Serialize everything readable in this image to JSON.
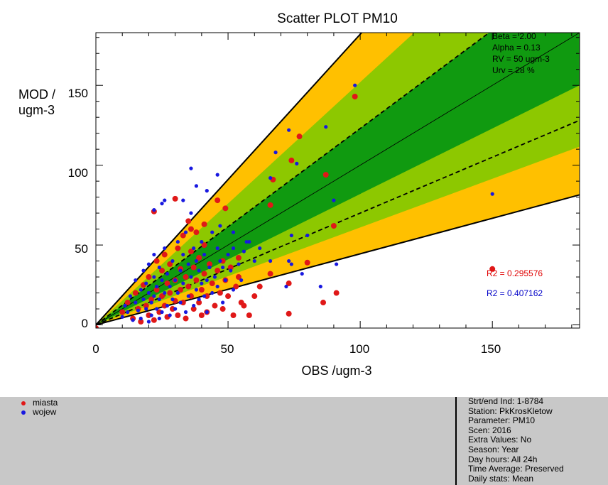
{
  "chart_data": {
    "type": "scatter",
    "title": "Scatter PLOT   PM10",
    "xlabel": "OBS /ugm-3",
    "ylabel": [
      "MOD /",
      "ugm-3"
    ],
    "xlim": [
      0,
      183
    ],
    "ylim": [
      -2,
      183
    ],
    "x_ticks": [
      "0",
      "50",
      "100",
      "150"
    ],
    "y_ticks": [
      "0",
      "50",
      "100",
      "150"
    ],
    "annotations": [
      "Beta = 2.00",
      "Alpha = 0.13",
      "RV = 50 ugm-3",
      "Urv = 28 %"
    ],
    "bands": {
      "colors": {
        "outer": "#ffc000",
        "middle": "#8dc800",
        "inner": "#109a10"
      }
    },
    "r2": [
      {
        "label": "R2 = 0.295576",
        "color": "#e00000"
      },
      {
        "label": "R2 = 0.407162",
        "color": "#0000c8"
      }
    ],
    "series": [
      {
        "name": "miasta",
        "color": "#e01818",
        "points": [
          [
            0,
            -2
          ],
          [
            10,
            8
          ],
          [
            12,
            14
          ],
          [
            14,
            4
          ],
          [
            15,
            20
          ],
          [
            16,
            10
          ],
          [
            17,
            2
          ],
          [
            18,
            25
          ],
          [
            19,
            12
          ],
          [
            20,
            6
          ],
          [
            20,
            30
          ],
          [
            21,
            16
          ],
          [
            22,
            3
          ],
          [
            23,
            22
          ],
          [
            23,
            40
          ],
          [
            24,
            8
          ],
          [
            25,
            18
          ],
          [
            25,
            34
          ],
          [
            26,
            12
          ],
          [
            26,
            44
          ],
          [
            27,
            5
          ],
          [
            27,
            26
          ],
          [
            28,
            20
          ],
          [
            28,
            38
          ],
          [
            29,
            10
          ],
          [
            30,
            28
          ],
          [
            30,
            15
          ],
          [
            31,
            48
          ],
          [
            31,
            6
          ],
          [
            32,
            22
          ],
          [
            32,
            35
          ],
          [
            33,
            14
          ],
          [
            33,
            56
          ],
          [
            34,
            30
          ],
          [
            34,
            4
          ],
          [
            35,
            65
          ],
          [
            35,
            24
          ],
          [
            36,
            18
          ],
          [
            36,
            46
          ],
          [
            37,
            10
          ],
          [
            37,
            36
          ],
          [
            38,
            58
          ],
          [
            38,
            28
          ],
          [
            39,
            14
          ],
          [
            39,
            42
          ],
          [
            40,
            22
          ],
          [
            40,
            6
          ],
          [
            41,
            50
          ],
          [
            41,
            32
          ],
          [
            42,
            18
          ],
          [
            42,
            8
          ],
          [
            43,
            38
          ],
          [
            44,
            26
          ],
          [
            45,
            12
          ],
          [
            46,
            78
          ],
          [
            46,
            34
          ],
          [
            47,
            20
          ],
          [
            48,
            10
          ],
          [
            48,
            40
          ],
          [
            49,
            73
          ],
          [
            49,
            28
          ],
          [
            50,
            18
          ],
          [
            51,
            36
          ],
          [
            52,
            6
          ],
          [
            53,
            24
          ],
          [
            54,
            30
          ],
          [
            55,
            14
          ],
          [
            56,
            12
          ],
          [
            58,
            6
          ],
          [
            60,
            18
          ],
          [
            22,
            71
          ],
          [
            30,
            79
          ],
          [
            36,
            60
          ],
          [
            41,
            63
          ],
          [
            66,
            75
          ],
          [
            67,
            91
          ],
          [
            66,
            32
          ],
          [
            73,
            26
          ],
          [
            73,
            7
          ],
          [
            74,
            103
          ],
          [
            77,
            118
          ],
          [
            80,
            39
          ],
          [
            86,
            14
          ],
          [
            87,
            94
          ],
          [
            90,
            62
          ],
          [
            91,
            20
          ],
          [
            98,
            143
          ],
          [
            150,
            35
          ],
          [
            54,
            42
          ],
          [
            62,
            24
          ]
        ]
      },
      {
        "name": "wojew",
        "color": "#1818e0",
        "points": [
          [
            10,
            5
          ],
          [
            11,
            12
          ],
          [
            12,
            8
          ],
          [
            13,
            18
          ],
          [
            14,
            3
          ],
          [
            15,
            14
          ],
          [
            15,
            28
          ],
          [
            16,
            9
          ],
          [
            17,
            22
          ],
          [
            17,
            4
          ],
          [
            18,
            16
          ],
          [
            18,
            34
          ],
          [
            19,
            10
          ],
          [
            19,
            26
          ],
          [
            20,
            2
          ],
          [
            20,
            20
          ],
          [
            20,
            38
          ],
          [
            21,
            14
          ],
          [
            21,
            6
          ],
          [
            22,
            30
          ],
          [
            22,
            18
          ],
          [
            22,
            44
          ],
          [
            23,
            10
          ],
          [
            23,
            24
          ],
          [
            24,
            4
          ],
          [
            24,
            16
          ],
          [
            24,
            36
          ],
          [
            25,
            28
          ],
          [
            25,
            8
          ],
          [
            26,
            20
          ],
          [
            26,
            48
          ],
          [
            27,
            12
          ],
          [
            27,
            32
          ],
          [
            28,
            24
          ],
          [
            28,
            6
          ],
          [
            29,
            16
          ],
          [
            29,
            40
          ],
          [
            30,
            28
          ],
          [
            30,
            10
          ],
          [
            31,
            52
          ],
          [
            31,
            20
          ],
          [
            32,
            34
          ],
          [
            32,
            14
          ],
          [
            33,
            44
          ],
          [
            33,
            26
          ],
          [
            34,
            8
          ],
          [
            34,
            58
          ],
          [
            35,
            18
          ],
          [
            35,
            38
          ],
          [
            36,
            30
          ],
          [
            36,
            70
          ],
          [
            37,
            12
          ],
          [
            37,
            48
          ],
          [
            38,
            22
          ],
          [
            38,
            40
          ],
          [
            39,
            16
          ],
          [
            39,
            34
          ],
          [
            40,
            26
          ],
          [
            40,
            52
          ],
          [
            41,
            18
          ],
          [
            41,
            44
          ],
          [
            42,
            28
          ],
          [
            42,
            8
          ],
          [
            43,
            36
          ],
          [
            44,
            20
          ],
          [
            44,
            58
          ],
          [
            45,
            30
          ],
          [
            46,
            24
          ],
          [
            46,
            48
          ],
          [
            47,
            40
          ],
          [
            48,
            14
          ],
          [
            48,
            36
          ],
          [
            49,
            28
          ],
          [
            50,
            44
          ],
          [
            51,
            34
          ],
          [
            52,
            22
          ],
          [
            52,
            48
          ],
          [
            54,
            38
          ],
          [
            55,
            28
          ],
          [
            56,
            46
          ],
          [
            58,
            52
          ],
          [
            60,
            40
          ],
          [
            22,
            72
          ],
          [
            25,
            76
          ],
          [
            26,
            78
          ],
          [
            33,
            78
          ],
          [
            36,
            98
          ],
          [
            38,
            87
          ],
          [
            42,
            84
          ],
          [
            46,
            94
          ],
          [
            47,
            62
          ],
          [
            52,
            58
          ],
          [
            57,
            52
          ],
          [
            62,
            48
          ],
          [
            66,
            92
          ],
          [
            68,
            108
          ],
          [
            73,
            122
          ],
          [
            74,
            56
          ],
          [
            74,
            38
          ],
          [
            76,
            101
          ],
          [
            78,
            32
          ],
          [
            80,
            56
          ],
          [
            85,
            24
          ],
          [
            87,
            124
          ],
          [
            90,
            78
          ],
          [
            91,
            38
          ],
          [
            98,
            150
          ],
          [
            150,
            82
          ],
          [
            72,
            24
          ],
          [
            73,
            40
          ],
          [
            66,
            40
          ]
        ]
      }
    ]
  },
  "legend": {
    "items": [
      {
        "label": "miasta",
        "color": "#e01818"
      },
      {
        "label": "wojew",
        "color": "#1818e0"
      }
    ]
  },
  "info": {
    "lines": [
      "Strt/end Ind: 1-8784",
      "Station: PkKrosKletow",
      "Parameter: PM10",
      "Scen: 2016",
      "Extra Values: No",
      "Season: Year",
      "Day hours: All 24h",
      "Time Average: Preserved",
      "Daily stats: Mean"
    ]
  }
}
